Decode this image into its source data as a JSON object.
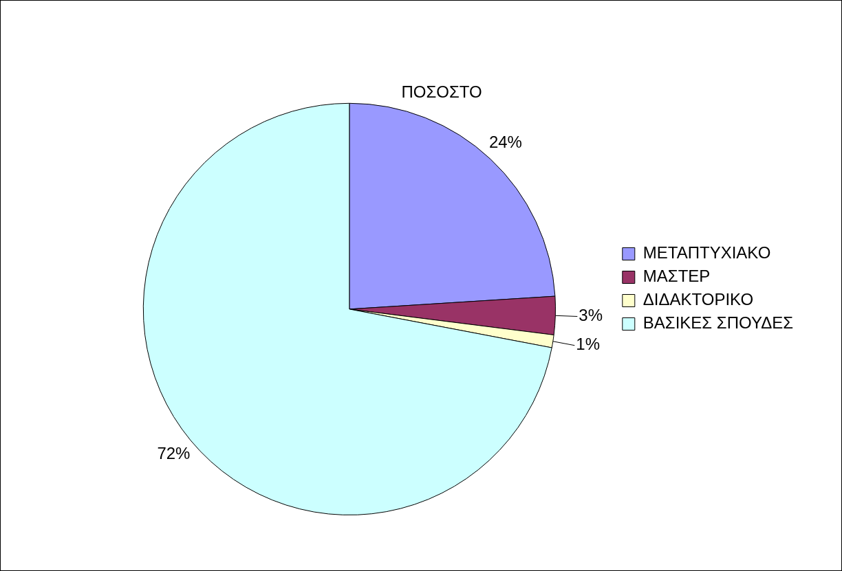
{
  "chart_data": {
    "type": "pie",
    "title": "ΠΟΣΟΣΤΟ",
    "categories": [
      "ΜΕΤΑΠΤΥΧΙΑΚΟ",
      "ΜΑΣΤΕΡ",
      "ΔΙΔΑΚΤΟΡΙΚΟ",
      "ΒΑΣΙΚΕΣ ΣΠΟΥΔΕΣ"
    ],
    "values": [
      24,
      3,
      1,
      72
    ],
    "colors": [
      "#9999ff",
      "#993366",
      "#ffffcc",
      "#ccffff"
    ],
    "value_labels": [
      "24%",
      "3%",
      "1%",
      "72%"
    ],
    "legend": "right"
  }
}
